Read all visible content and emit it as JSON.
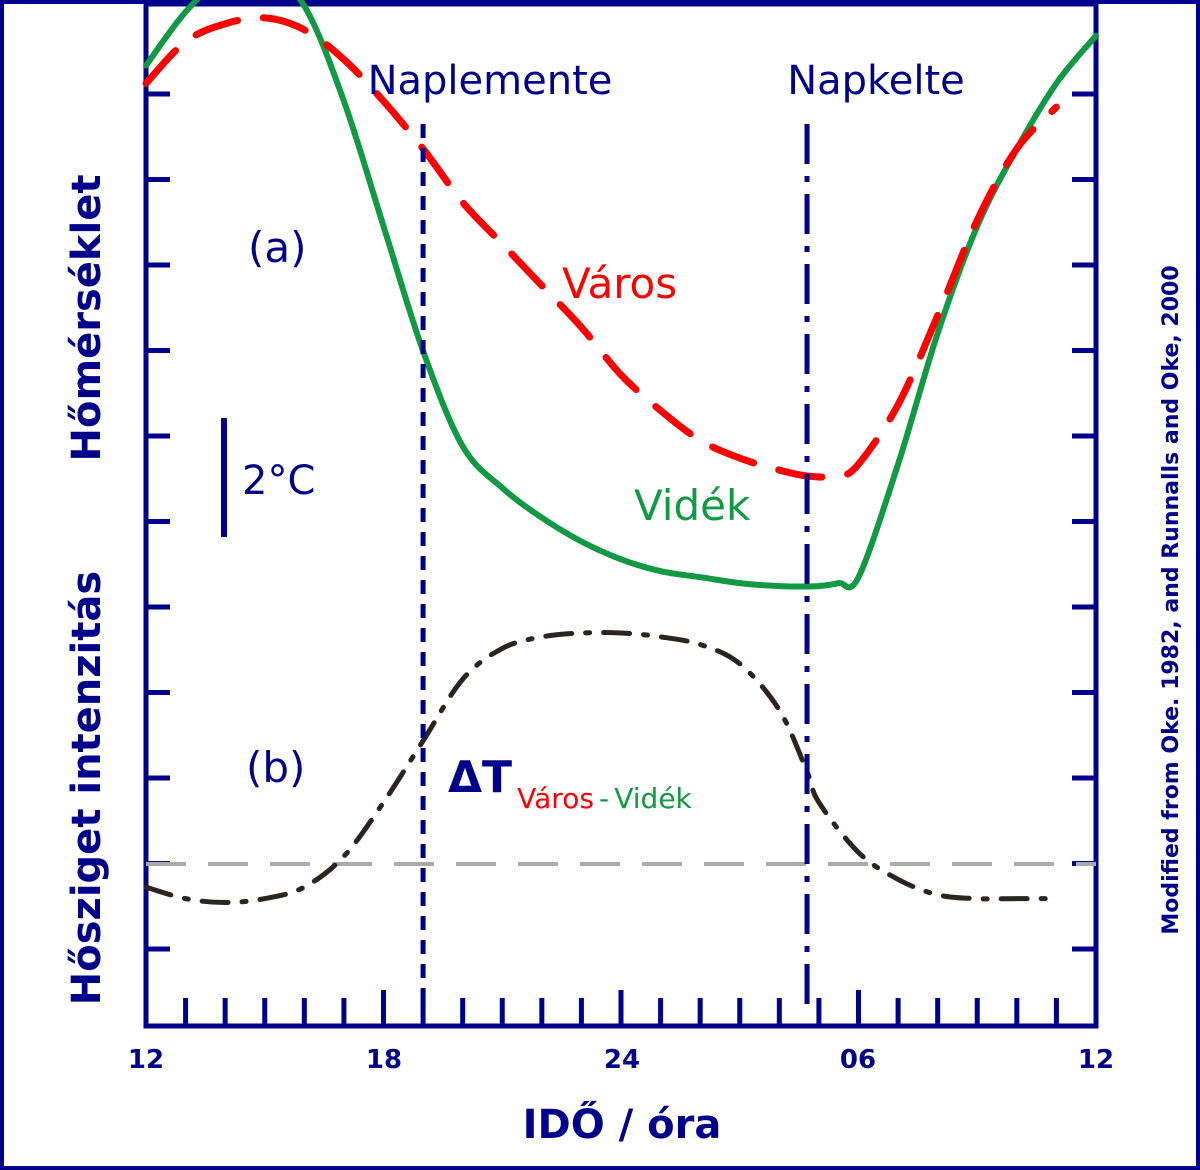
{
  "chart_data": {
    "type": "line",
    "xlabel": "IDŐ / óra",
    "ylabel_top": "Hőmérséklet",
    "ylabel_bottom": "Hősziget intenzitás",
    "xticks": [
      "12",
      "18",
      "24",
      "06",
      "12"
    ],
    "x_unit": "hours since 12:00",
    "xlim": [
      0,
      24
    ],
    "panel_a_label": "(a)",
    "panel_b_label": "(b)",
    "scale_bar_label": "2°C",
    "credit": "Modified from Oke. 1982, and Runnalls and Oke, 2000",
    "events": [
      {
        "label": "Naplemente",
        "x": 7.0
      },
      {
        "label": "Napkelte",
        "x": 16.7
      }
    ],
    "delta_label": {
      "symbol": "ΔT",
      "part1": "Város",
      "sep": "-",
      "part2": "Vidék"
    },
    "series": [
      {
        "name": "Város",
        "color": "#ff0000",
        "x": [
          0,
          1,
          2,
          3,
          4,
          5,
          6,
          7,
          8,
          9,
          10,
          11,
          12,
          13,
          14,
          15,
          16,
          16.7,
          17.5,
          18,
          19,
          20,
          21,
          22,
          23
        ],
        "y": [
          22.9,
          23.6,
          23.9,
          24.0,
          23.8,
          23.3,
          22.6,
          21.8,
          20.9,
          20.2,
          19.5,
          18.8,
          18.0,
          17.4,
          16.9,
          16.6,
          16.4,
          16.3,
          16.3,
          16.5,
          17.5,
          19.0,
          20.6,
          21.8,
          22.5
        ],
        "dash": "long"
      },
      {
        "name": "Vidék",
        "color": "#119944",
        "x": [
          0,
          1,
          2,
          3,
          4,
          5,
          6,
          7,
          8,
          9,
          10,
          11,
          12,
          13,
          14,
          15,
          16,
          17,
          17.5,
          18,
          19,
          20,
          21,
          22,
          23,
          24
        ],
        "y": [
          23.2,
          24.1,
          24.7,
          24.8,
          24.2,
          22.6,
          20.5,
          18.4,
          16.8,
          16.1,
          15.6,
          15.2,
          14.9,
          14.7,
          14.6,
          14.5,
          14.45,
          14.45,
          14.5,
          14.6,
          16.5,
          18.7,
          20.5,
          21.8,
          22.9,
          23.7
        ],
        "dash": "solid"
      },
      {
        "name": "ΔT",
        "color": "#2b2420",
        "x": [
          0,
          1,
          2,
          3,
          4,
          5,
          6,
          7,
          8,
          9,
          10,
          11,
          12,
          13,
          14,
          15,
          16,
          16.7,
          17,
          18,
          19,
          20,
          21,
          22,
          23
        ],
        "y": [
          -0.3,
          -0.45,
          -0.5,
          -0.45,
          -0.3,
          0.1,
          0.8,
          1.6,
          2.4,
          2.8,
          2.95,
          3.0,
          3.0,
          2.95,
          2.85,
          2.6,
          2.0,
          1.2,
          0.8,
          0.15,
          -0.2,
          -0.4,
          -0.45,
          -0.45,
          -0.45
        ],
        "dash": "dash-dot"
      },
      {
        "name": "zero",
        "color": "#aaaaaa",
        "x": [
          0,
          24
        ],
        "y": [
          0,
          0
        ],
        "dash": "dashed"
      }
    ]
  }
}
